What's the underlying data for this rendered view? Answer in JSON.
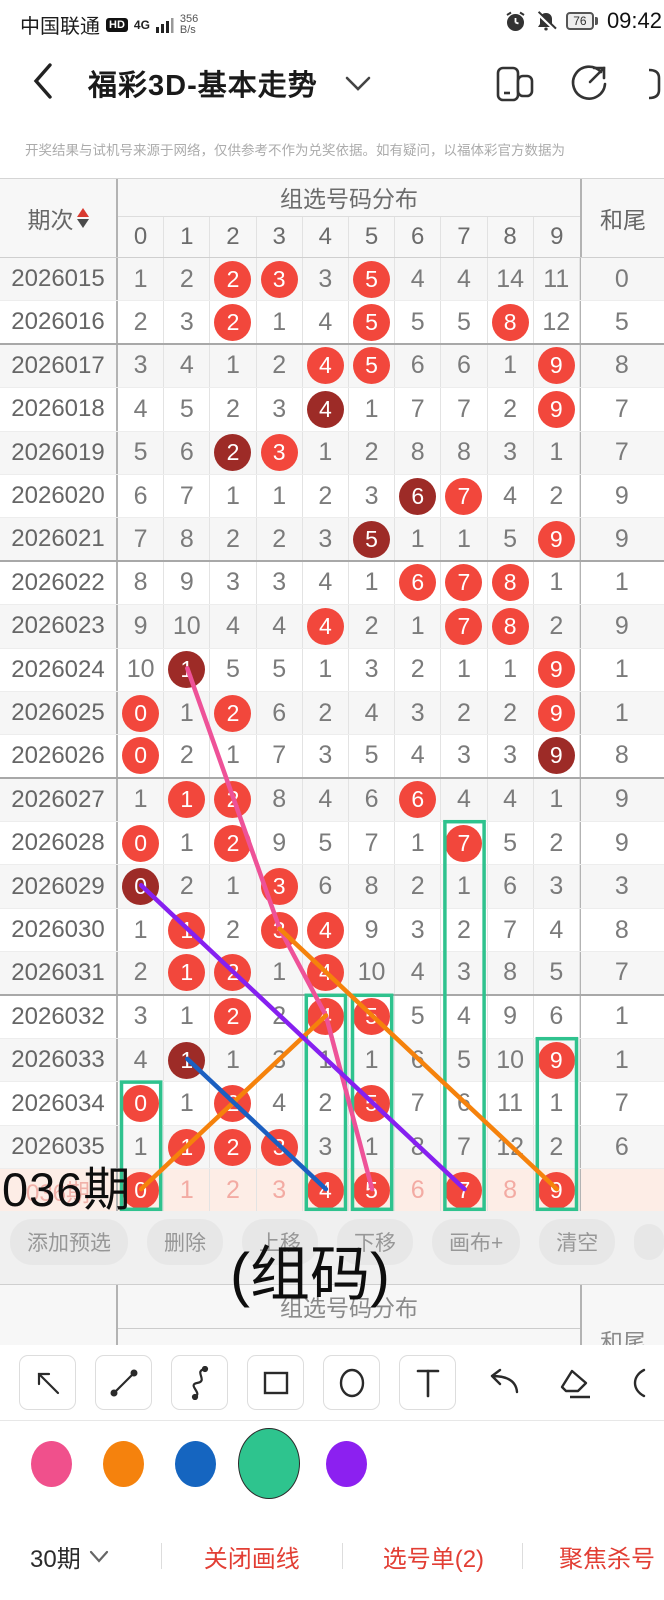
{
  "status_bar": {
    "carrier": "中国联通",
    "hd_badge": "HD",
    "network": "4G",
    "speed_value": "356",
    "speed_unit": "B/s",
    "battery_percent": "76",
    "time": "09:42"
  },
  "header": {
    "title": "福彩3D-基本走势",
    "icons": [
      "back-icon",
      "chevron-down-icon",
      "multi-window-icon",
      "share-icon",
      "partial-icon"
    ]
  },
  "notice": "开奖结果与试机号来源于网络，仅供参考不作为兑奖依据。如有疑问，以福体彩官方数据为",
  "table": {
    "period_header": "期次",
    "group_header": "组选号码分布",
    "hewei_header": "和尾",
    "digit_headers": [
      "0",
      "1",
      "2",
      "3",
      "4",
      "5",
      "6",
      "7",
      "8",
      "9"
    ],
    "colors": {
      "red_ball": "#f2473c",
      "dark_ball": "#9d2b27",
      "predict_bg": "#fdede6",
      "predict_faded": "#f3aba3"
    },
    "rows": [
      {
        "period": "2026015",
        "values": [
          1,
          2,
          2,
          3,
          3,
          5,
          4,
          4,
          14,
          11
        ],
        "red": [
          2,
          3,
          5
        ],
        "dark": [],
        "hewei": "0"
      },
      {
        "period": "2026016",
        "values": [
          2,
          3,
          2,
          1,
          4,
          5,
          5,
          5,
          8,
          12
        ],
        "red": [
          2,
          5,
          8
        ],
        "dark": [],
        "hewei": "5"
      },
      {
        "period": "2026017",
        "values": [
          3,
          4,
          1,
          2,
          4,
          5,
          6,
          6,
          1,
          9
        ],
        "red": [
          4,
          5,
          9
        ],
        "dark": [],
        "hewei": "8"
      },
      {
        "period": "2026018",
        "values": [
          4,
          5,
          2,
          3,
          4,
          1,
          7,
          7,
          2,
          9
        ],
        "red": [
          9
        ],
        "dark": [
          4
        ],
        "hewei": "7"
      },
      {
        "period": "2026019",
        "values": [
          5,
          6,
          2,
          3,
          1,
          2,
          8,
          8,
          3,
          1
        ],
        "red": [
          3
        ],
        "dark": [
          2
        ],
        "hewei": "7"
      },
      {
        "period": "2026020",
        "values": [
          6,
          7,
          1,
          1,
          2,
          3,
          6,
          7,
          4,
          2
        ],
        "red": [
          7
        ],
        "dark": [
          6
        ],
        "hewei": "9"
      },
      {
        "period": "2026021",
        "values": [
          7,
          8,
          2,
          2,
          3,
          5,
          1,
          1,
          5,
          9
        ],
        "red": [
          9
        ],
        "dark": [
          5
        ],
        "hewei": "9"
      },
      {
        "period": "2026022",
        "values": [
          8,
          9,
          3,
          3,
          4,
          1,
          6,
          7,
          8,
          1
        ],
        "red": [
          6,
          7,
          8
        ],
        "dark": [],
        "hewei": "1"
      },
      {
        "period": "2026023",
        "values": [
          9,
          10,
          4,
          4,
          4,
          2,
          1,
          7,
          8,
          2
        ],
        "red": [
          4,
          7,
          8
        ],
        "dark": [],
        "hewei": "9"
      },
      {
        "period": "2026024",
        "values": [
          10,
          1,
          5,
          5,
          1,
          3,
          2,
          1,
          1,
          9
        ],
        "red": [
          9
        ],
        "dark": [
          1
        ],
        "hewei": "1"
      },
      {
        "period": "2026025",
        "values": [
          0,
          1,
          2,
          6,
          2,
          4,
          3,
          2,
          2,
          9
        ],
        "red": [
          0,
          2,
          9
        ],
        "dark": [],
        "hewei": "1"
      },
      {
        "period": "2026026",
        "values": [
          0,
          2,
          1,
          7,
          3,
          5,
          4,
          3,
          3,
          9
        ],
        "red": [
          0
        ],
        "dark": [
          9
        ],
        "hewei": "8"
      },
      {
        "period": "2026027",
        "values": [
          1,
          1,
          2,
          8,
          4,
          6,
          6,
          4,
          4,
          1
        ],
        "red": [
          1,
          2,
          6
        ],
        "dark": [],
        "hewei": "9"
      },
      {
        "period": "2026028",
        "values": [
          0,
          1,
          2,
          9,
          5,
          7,
          1,
          7,
          5,
          2
        ],
        "red": [
          0,
          2,
          7
        ],
        "dark": [],
        "hewei": "9"
      },
      {
        "period": "2026029",
        "values": [
          0,
          2,
          1,
          3,
          6,
          8,
          2,
          1,
          6,
          3
        ],
        "red": [
          3
        ],
        "dark": [
          0
        ],
        "hewei": "3"
      },
      {
        "period": "2026030",
        "values": [
          1,
          1,
          2,
          3,
          4,
          9,
          3,
          2,
          7,
          4
        ],
        "red": [
          1,
          3,
          4
        ],
        "dark": [],
        "hewei": "8"
      },
      {
        "period": "2026031",
        "values": [
          2,
          1,
          2,
          1,
          4,
          10,
          4,
          3,
          8,
          5
        ],
        "red": [
          1,
          2,
          4
        ],
        "dark": [],
        "hewei": "7"
      },
      {
        "period": "2026032",
        "values": [
          3,
          1,
          2,
          2,
          4,
          5,
          5,
          4,
          9,
          6
        ],
        "red": [
          2,
          4,
          5
        ],
        "dark": [],
        "hewei": "1"
      },
      {
        "period": "2026033",
        "values": [
          4,
          1,
          1,
          3,
          1,
          1,
          6,
          5,
          10,
          9
        ],
        "red": [
          9
        ],
        "dark": [
          1
        ],
        "hewei": "1"
      },
      {
        "period": "2026034",
        "values": [
          0,
          1,
          2,
          4,
          2,
          5,
          7,
          6,
          11,
          1
        ],
        "red": [
          0,
          2,
          5
        ],
        "dark": [],
        "hewei": "7"
      },
      {
        "period": "2026035",
        "values": [
          1,
          1,
          2,
          3,
          3,
          1,
          8,
          7,
          12,
          2
        ],
        "red": [
          1,
          2,
          3
        ],
        "dark": [],
        "hewei": "6"
      }
    ],
    "group_separator_after": [
      "2026016",
      "2026021",
      "2026026",
      "2026031"
    ],
    "predict_row": {
      "period": "036期",
      "values": [
        0,
        1,
        2,
        3,
        4,
        5,
        6,
        7,
        8,
        9
      ],
      "red": [
        0,
        4,
        5,
        7,
        9
      ],
      "dark": [],
      "hewei": ""
    }
  },
  "drawing": {
    "lines": [
      {
        "name": "pink-trend-line",
        "color": "#ee5298",
        "points": [
          [
            9,
            1
          ],
          [
            15,
            3
          ],
          [
            17,
            4
          ],
          [
            21,
            5
          ]
        ]
      },
      {
        "name": "orange-trend-line-right",
        "color": "#f5820c",
        "points": [
          [
            15,
            3
          ],
          [
            21,
            9
          ]
        ]
      },
      {
        "name": "orange-trend-line-left",
        "color": "#f5820c",
        "points": [
          [
            17,
            4
          ],
          [
            21,
            0
          ]
        ]
      },
      {
        "name": "blue-trend-line",
        "color": "#1b5fc1",
        "points": [
          [
            18,
            1
          ],
          [
            21,
            4
          ]
        ]
      },
      {
        "name": "purple-trend-line",
        "color": "#8620f0",
        "points": [
          [
            14,
            0
          ],
          [
            21,
            7
          ]
        ]
      }
    ],
    "boxes_color": "#2fc28e",
    "boxes": [
      {
        "col": 0,
        "from": 19,
        "to": 22
      },
      {
        "col": 4,
        "from": 17,
        "to": 22
      },
      {
        "col": 5,
        "from": 17,
        "to": 22
      },
      {
        "col": 7,
        "from": 13,
        "to": 22
      },
      {
        "col": 9,
        "from": 18,
        "to": 22
      }
    ]
  },
  "annotations": {
    "period_text": "036期",
    "group_text": "(组码)"
  },
  "action_buttons": [
    "添加预选",
    "删除",
    "上移",
    "下移",
    "画布+",
    "清空"
  ],
  "section2": {
    "group_header": "组选号码分布",
    "hewei_header": "和尾"
  },
  "draw_tools": [
    "arrow-tool",
    "line-tool",
    "curve-tool",
    "rectangle-tool",
    "circle-tool",
    "text-tool",
    "undo",
    "eraser"
  ],
  "palette": {
    "colors": [
      "#f0508c",
      "#f5820d",
      "#1565c0",
      "#2ec48e",
      "#8c20f0"
    ],
    "selected_index": 3
  },
  "bottom_bar": {
    "periods": "30期",
    "close_draw": "关闭画线",
    "ticket": "选号单(2)",
    "focus": "聚焦杀号",
    "accent": "#e23e34"
  }
}
